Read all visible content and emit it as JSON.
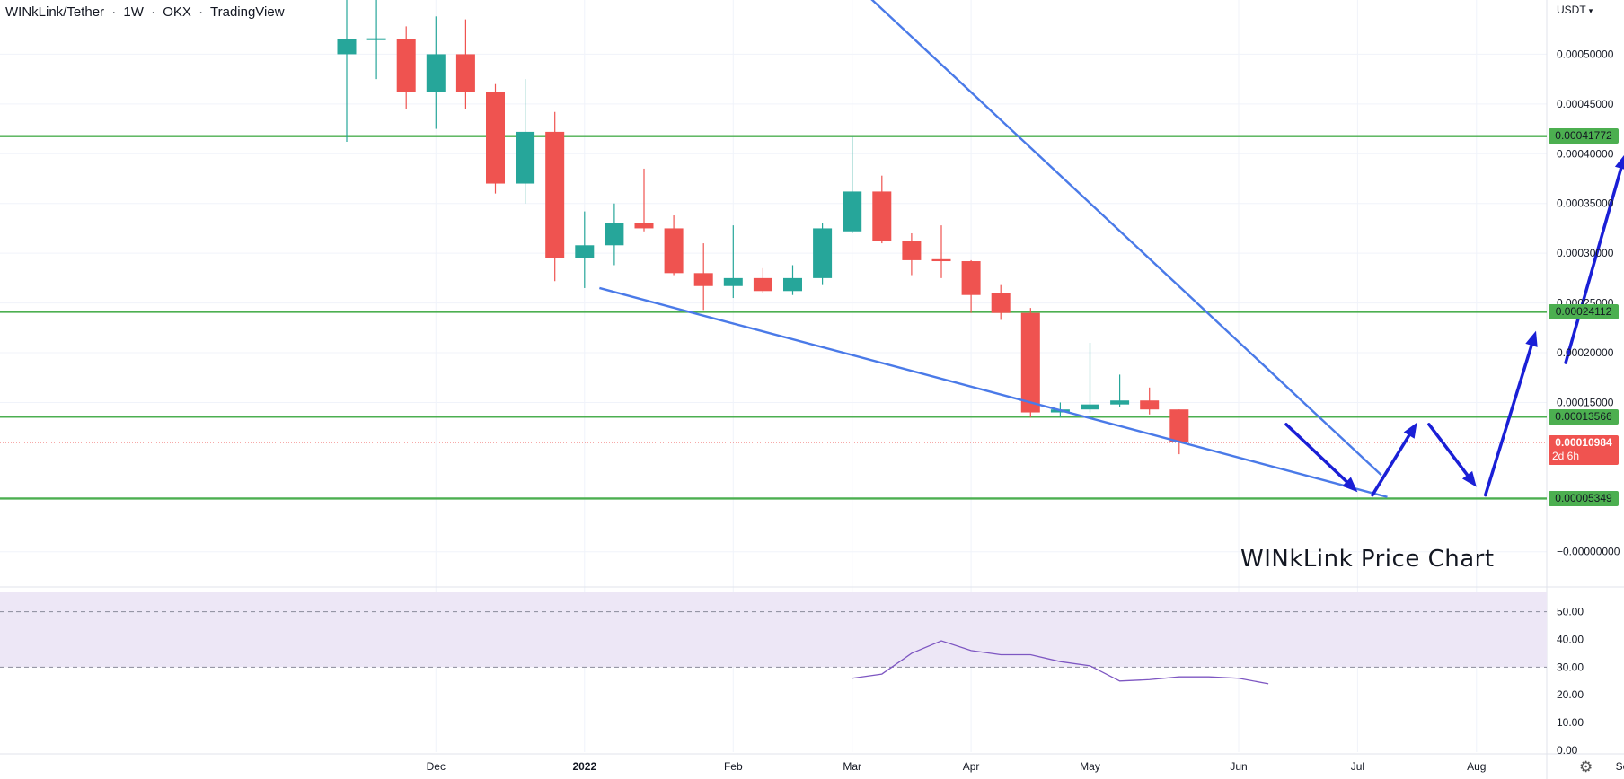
{
  "header": {
    "pair": "WINkLink/Tether",
    "interval": "1W",
    "exchange": "OKX",
    "platform": "TradingView",
    "separator": "·"
  },
  "currency_label": "USDT",
  "caption": "WINkLink Price Chart",
  "settings_icon": "gear-icon",
  "colors": {
    "up": "#26a69a",
    "down": "#ef5350",
    "level": "#4caf50",
    "trendline": "#4a7ae8",
    "arrow": "#1a1fd6",
    "rsi": "#7e57c2",
    "rsi_band": "#ede7f6"
  },
  "chart_data": [
    {
      "type": "candlestick",
      "title": "WINkLink/Tether · 1W · OKX · TradingView",
      "x_axis": {
        "labels": [
          "Dec",
          "2022",
          "Feb",
          "Mar",
          "Apr",
          "May",
          "Jun",
          "Jul",
          "Aug",
          "Sep"
        ],
        "label_week_index": [
          3,
          8,
          13,
          17,
          21,
          25,
          30,
          34,
          38,
          43
        ]
      },
      "y_axis": {
        "side": "right",
        "ticks": [
          "0.00050000",
          "0.00045000",
          "0.00040000",
          "0.00035000",
          "0.00030000",
          "0.00025000",
          "0.00020000",
          "0.00015000",
          "−0.00000000"
        ],
        "tick_values": [
          0.0005,
          0.00045,
          0.0004,
          0.00035,
          0.0003,
          0.00025,
          0.0002,
          0.00015,
          0
        ],
        "range": [
          -3e-05,
          0.00055
        ]
      },
      "candles": [
        {
          "o": 0.0005,
          "h": 0.00056,
          "l": 0.000412,
          "c": 0.000515
        },
        {
          "o": 0.000515,
          "h": 0.000555,
          "l": 0.000475,
          "c": 0.000516
        },
        {
          "o": 0.000515,
          "h": 0.000528,
          "l": 0.000445,
          "c": 0.000462
        },
        {
          "o": 0.000462,
          "h": 0.000538,
          "l": 0.000425,
          "c": 0.0005
        },
        {
          "o": 0.0005,
          "h": 0.000535,
          "l": 0.000445,
          "c": 0.000462
        },
        {
          "o": 0.000462,
          "h": 0.00047,
          "l": 0.00036,
          "c": 0.00037
        },
        {
          "o": 0.00037,
          "h": 0.000475,
          "l": 0.00035,
          "c": 0.000422
        },
        {
          "o": 0.000422,
          "h": 0.000442,
          "l": 0.000272,
          "c": 0.000295
        },
        {
          "o": 0.000295,
          "h": 0.000342,
          "l": 0.000265,
          "c": 0.000308
        },
        {
          "o": 0.000308,
          "h": 0.00035,
          "l": 0.000288,
          "c": 0.00033
        },
        {
          "o": 0.00033,
          "h": 0.000385,
          "l": 0.000322,
          "c": 0.000325
        },
        {
          "o": 0.000325,
          "h": 0.000338,
          "l": 0.000278,
          "c": 0.00028
        },
        {
          "o": 0.00028,
          "h": 0.00031,
          "l": 0.000243,
          "c": 0.000267
        },
        {
          "o": 0.000267,
          "h": 0.000328,
          "l": 0.000255,
          "c": 0.000275
        },
        {
          "o": 0.000275,
          "h": 0.000285,
          "l": 0.00026,
          "c": 0.000262
        },
        {
          "o": 0.000262,
          "h": 0.000288,
          "l": 0.000258,
          "c": 0.000275
        },
        {
          "o": 0.000275,
          "h": 0.00033,
          "l": 0.000268,
          "c": 0.000325
        },
        {
          "o": 0.000322,
          "h": 0.000418,
          "l": 0.00032,
          "c": 0.000362
        },
        {
          "o": 0.000362,
          "h": 0.000378,
          "l": 0.00031,
          "c": 0.000312
        },
        {
          "o": 0.000312,
          "h": 0.00032,
          "l": 0.000278,
          "c": 0.000293
        },
        {
          "o": 0.000294,
          "h": 0.000328,
          "l": 0.000275,
          "c": 0.000292
        },
        {
          "o": 0.000292,
          "h": 0.000293,
          "l": 0.00024,
          "c": 0.000258
        },
        {
          "o": 0.00026,
          "h": 0.000268,
          "l": 0.000233,
          "c": 0.00024
        },
        {
          "o": 0.00024,
          "h": 0.000245,
          "l": 0.000135,
          "c": 0.00014
        },
        {
          "o": 0.00014,
          "h": 0.00015,
          "l": 0.000135,
          "c": 0.000143
        },
        {
          "o": 0.000143,
          "h": 0.00021,
          "l": 0.00014,
          "c": 0.000148
        },
        {
          "o": 0.000148,
          "h": 0.000178,
          "l": 0.000145,
          "c": 0.000152
        },
        {
          "o": 0.000152,
          "h": 0.000165,
          "l": 0.000138,
          "c": 0.000143
        },
        {
          "o": 0.000143,
          "h": 0.000143,
          "l": 9.8e-05,
          "c": 0.00011
        }
      ],
      "horizontal_levels": [
        {
          "value": 0.00041772,
          "label": "0.00041772"
        },
        {
          "value": 0.00024112,
          "label": "0.00024112"
        },
        {
          "value": 0.00013566,
          "label": "0.00013566"
        },
        {
          "value": 5.349e-05,
          "label": "0.00005349"
        }
      ],
      "last_price": {
        "value": 0.00010984,
        "label": "0.00010984",
        "countdown": "2d 6h"
      },
      "trendlines": [
        {
          "from": {
            "week": 17.3,
            "value": 0.000565
          },
          "to": {
            "week": 34.8,
            "value": 7.7e-05
          }
        },
        {
          "from": {
            "week": 8.5,
            "value": 0.000265
          },
          "to": {
            "week": 35.0,
            "value": 5.5e-05
          }
        }
      ],
      "projection_arrows": [
        {
          "from": {
            "week": 31.6,
            "value": 0.000128
          },
          "to": {
            "week": 34.0,
            "value": 6e-05
          }
        },
        {
          "from": {
            "week": 34.5,
            "value": 5.7e-05
          },
          "to": {
            "week": 36.0,
            "value": 0.00013
          }
        },
        {
          "from": {
            "week": 36.4,
            "value": 0.000128
          },
          "to": {
            "week": 38.0,
            "value": 6.5e-05
          }
        },
        {
          "from": {
            "week": 38.3,
            "value": 5.7e-05
          },
          "to": {
            "week": 40.0,
            "value": 0.000222
          }
        },
        {
          "from": {
            "week": 41.0,
            "value": 0.00019
          },
          "to": {
            "week": 43.0,
            "value": 0.0004
          }
        }
      ]
    },
    {
      "type": "line",
      "title": "",
      "y_axis": {
        "ticks": [
          "50.00",
          "40.00",
          "30.00",
          "20.00",
          "10.00",
          "0.00"
        ],
        "tick_values": [
          50,
          40,
          30,
          20,
          10,
          0
        ],
        "range": [
          0,
          57
        ],
        "band": [
          30,
          70
        ],
        "dashed_levels": [
          50,
          30
        ]
      },
      "series": [
        {
          "start_week": 17,
          "values": [
            26,
            27.5,
            35,
            39.5,
            36,
            34.5,
            34.5,
            32,
            30.5,
            25,
            25.5,
            26.5,
            26.5,
            26,
            24
          ]
        }
      ]
    }
  ]
}
